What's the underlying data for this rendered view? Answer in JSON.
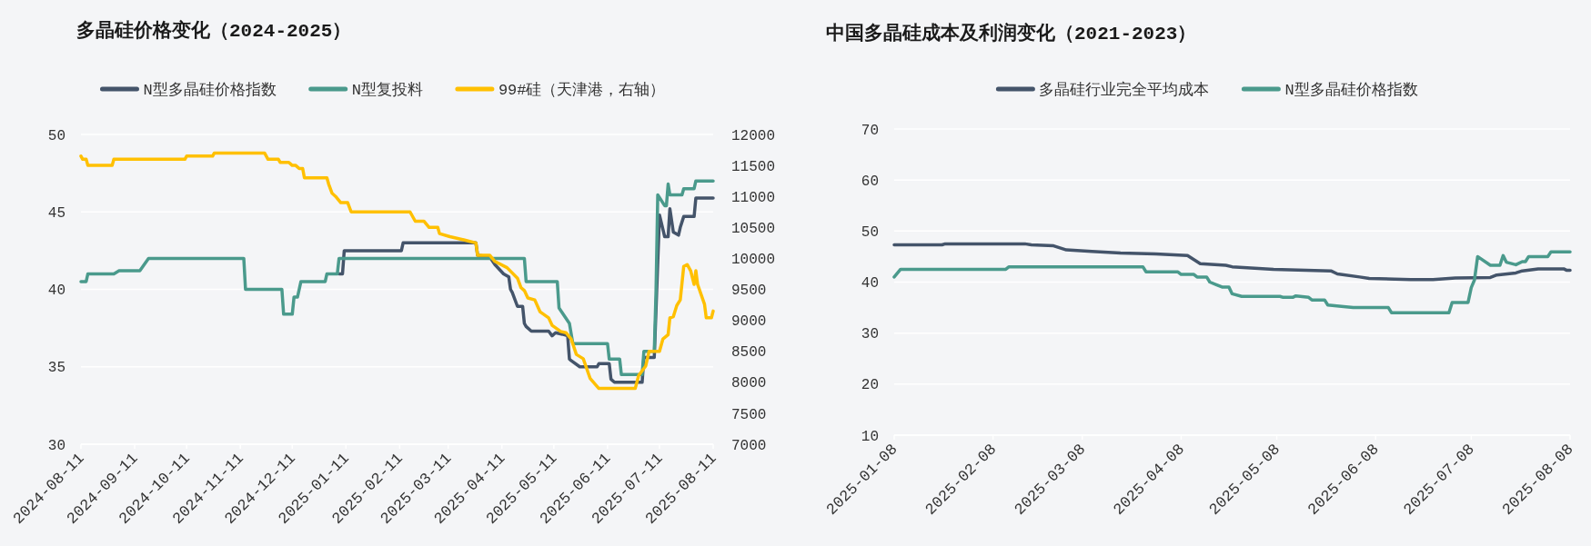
{
  "chart_data": [
    {
      "type": "line",
      "title": "多晶硅价格变化（2024-2025）",
      "xlim": [
        "2024-08-11",
        "2025-08-11"
      ],
      "xticks": [
        "2024-08-11",
        "2024-09-11",
        "2024-10-11",
        "2024-11-11",
        "2024-12-11",
        "2025-01-11",
        "2025-02-11",
        "2025-03-11",
        "2025-04-11",
        "2025-05-11",
        "2025-06-11",
        "2025-07-11",
        "2025-08-11"
      ],
      "ylim": [
        30,
        50
      ],
      "yticks": [
        30,
        35,
        40,
        45,
        50
      ],
      "y2lim": [
        7000,
        12000
      ],
      "y2ticks": [
        7000,
        7500,
        8000,
        8500,
        9000,
        9500,
        10000,
        10500,
        11000,
        11500,
        12000
      ],
      "grid": "y",
      "legend": "top",
      "series": [
        {
          "name": "N型多晶硅价格指数",
          "color": "#44546a",
          "x": [
            "2025-01-07",
            "2025-01-09",
            "2025-01-10",
            "2025-02-12",
            "2025-02-13",
            "2025-03-27",
            "2025-03-28",
            "2025-04-04",
            "2025-04-07",
            "2025-04-12",
            "2025-04-15",
            "2025-04-16",
            "2025-04-17",
            "2025-04-20",
            "2025-04-23",
            "2025-04-24",
            "2025-04-25",
            "2025-04-28",
            "2025-05-08",
            "2025-05-10",
            "2025-05-12",
            "2025-05-16",
            "2025-05-19",
            "2025-05-20",
            "2025-05-21",
            "2025-05-26",
            "2025-06-05",
            "2025-06-06",
            "2025-06-12",
            "2025-06-13",
            "2025-06-15",
            "2025-07-01",
            "2025-07-02",
            "2025-07-08",
            "2025-07-11",
            "2025-07-14",
            "2025-07-16",
            "2025-07-17",
            "2025-07-19",
            "2025-07-22",
            "2025-07-23",
            "2025-07-25",
            "2025-07-31",
            "2025-08-01",
            "2025-08-11"
          ],
          "values": [
            41,
            41,
            42.5,
            42.5,
            43,
            43,
            42.2,
            42.1,
            41.6,
            41,
            40.8,
            40,
            39.8,
            38.9,
            38.9,
            37.8,
            37.6,
            37.3,
            37.3,
            37,
            37.2,
            37.1,
            37,
            35.5,
            35.4,
            35,
            35,
            35.2,
            35.2,
            34.2,
            34,
            34,
            35.6,
            35.6,
            44.8,
            43.4,
            43.4,
            45.2,
            43.7,
            43.5,
            44,
            44.7,
            44.7,
            45.9,
            45.9
          ]
        },
        {
          "name": "N型复投料",
          "color": "#4a9a8c",
          "x": [
            "2024-08-11",
            "2024-08-14",
            "2024-08-15",
            "2024-08-30",
            "2024-09-02",
            "2024-09-14",
            "2024-09-19",
            "2024-11-13",
            "2024-11-14",
            "2024-12-05",
            "2024-12-06",
            "2024-12-11",
            "2024-12-12",
            "2024-12-14",
            "2024-12-16",
            "2024-12-30",
            "2024-12-31",
            "2025-01-06",
            "2025-01-07",
            "2025-04-24",
            "2025-04-25",
            "2025-05-13",
            "2025-05-14",
            "2025-05-17",
            "2025-05-20",
            "2025-05-22",
            "2025-06-11",
            "2025-06-12",
            "2025-06-18",
            "2025-06-19",
            "2025-07-01",
            "2025-07-02",
            "2025-07-08",
            "2025-07-09",
            "2025-07-10",
            "2025-07-14",
            "2025-07-15",
            "2025-07-16",
            "2025-07-17",
            "2025-07-24",
            "2025-07-25",
            "2025-07-31",
            "2025-08-01",
            "2025-08-11"
          ],
          "values": [
            40.5,
            40.5,
            41,
            41,
            41.2,
            41.2,
            42,
            42,
            40,
            40,
            38.4,
            38.4,
            39.5,
            39.5,
            40.5,
            40.5,
            41,
            41,
            42,
            42,
            40.5,
            40.5,
            38.8,
            38.3,
            37.8,
            36.5,
            36.5,
            35.5,
            35.5,
            34.5,
            34.5,
            36,
            36,
            39.9,
            46.1,
            45.4,
            45.4,
            46.8,
            46.1,
            46.1,
            46.5,
            46.5,
            47,
            47
          ]
        },
        {
          "name": "99#硅（天津港，右轴）",
          "color": "#ffc000",
          "axis": "y2",
          "x": [
            "2024-08-11",
            "2024-08-12",
            "2024-08-14",
            "2024-08-15",
            "2024-08-29",
            "2024-08-30",
            "2024-10-10",
            "2024-10-11",
            "2024-10-26",
            "2024-10-27",
            "2024-11-25",
            "2024-11-27",
            "2024-12-03",
            "2024-12-04",
            "2024-12-09",
            "2024-12-11",
            "2024-12-13",
            "2024-12-15",
            "2024-12-17",
            "2024-12-18",
            "2024-12-31",
            "2025-01-01",
            "2025-01-03",
            "2025-01-05",
            "2025-01-08",
            "2025-01-12",
            "2025-01-14",
            "2025-02-17",
            "2025-02-20",
            "2025-02-25",
            "2025-02-28",
            "2025-03-05",
            "2025-03-06",
            "2025-03-12",
            "2025-03-20",
            "2025-03-27",
            "2025-03-28",
            "2025-04-04",
            "2025-04-07",
            "2025-04-14",
            "2025-04-20",
            "2025-04-22",
            "2025-04-24",
            "2025-04-26",
            "2025-04-30",
            "2025-05-03",
            "2025-05-08",
            "2025-05-10",
            "2025-05-15",
            "2025-05-18",
            "2025-05-21",
            "2025-05-24",
            "2025-05-28",
            "2025-06-01",
            "2025-06-06",
            "2025-06-27",
            "2025-06-29",
            "2025-07-03",
            "2025-07-05",
            "2025-07-11",
            "2025-07-13",
            "2025-07-16",
            "2025-07-17",
            "2025-07-19",
            "2025-07-21",
            "2025-07-23",
            "2025-07-25",
            "2025-07-27",
            "2025-07-29",
            "2025-07-31",
            "2025-08-01",
            "2025-08-02",
            "2025-08-06",
            "2025-08-07",
            "2025-08-10",
            "2025-08-11"
          ],
          "values": [
            11650,
            11600,
            11600,
            11500,
            11500,
            11600,
            11600,
            11650,
            11650,
            11700,
            11700,
            11600,
            11600,
            11550,
            11550,
            11500,
            11500,
            11450,
            11450,
            11300,
            11300,
            11200,
            11050,
            11000,
            10900,
            10900,
            10750,
            10750,
            10600,
            10600,
            10500,
            10500,
            10400,
            10350,
            10300,
            10250,
            10050,
            10050,
            9950,
            9850,
            9680,
            9530,
            9480,
            9360,
            9330,
            9140,
            9040,
            8920,
            8820,
            8800,
            8700,
            8450,
            8380,
            8060,
            7900,
            7900,
            8110,
            8260,
            8500,
            8500,
            8700,
            8770,
            9040,
            9060,
            9240,
            9330,
            9870,
            9900,
            9800,
            9580,
            9800,
            9580,
            9260,
            9040,
            9040,
            9150
          ]
        }
      ]
    },
    {
      "type": "line",
      "title": "中国多晶硅成本及利润变化（2021-2023）",
      "xlim": [
        "2025-01-08",
        "2025-08-08"
      ],
      "xticks": [
        "2025-01-08",
        "2025-02-08",
        "2025-03-08",
        "2025-04-08",
        "2025-05-08",
        "2025-06-08",
        "2025-07-08",
        "2025-08-08"
      ],
      "ylim": [
        10,
        70
      ],
      "yticks": [
        10,
        20,
        30,
        40,
        50,
        60,
        70
      ],
      "grid": "y",
      "legend": "top",
      "series": [
        {
          "name": "多晶硅行业完全平均成本",
          "color": "#44546a",
          "x": [
            "2025-01-08",
            "2025-01-23",
            "2025-01-24",
            "2025-02-18",
            "2025-02-20",
            "2025-02-27",
            "2025-03-03",
            "2025-03-11",
            "2025-03-20",
            "2025-03-31",
            "2025-04-10",
            "2025-04-14",
            "2025-04-22",
            "2025-04-24",
            "2025-05-07",
            "2025-05-25",
            "2025-05-27",
            "2025-06-03",
            "2025-06-06",
            "2025-06-19",
            "2025-06-26",
            "2025-07-03",
            "2025-07-14",
            "2025-07-16",
            "2025-07-22",
            "2025-07-24",
            "2025-07-29",
            "2025-08-06",
            "2025-08-07",
            "2025-08-08"
          ],
          "values": [
            47.3,
            47.3,
            47.5,
            47.5,
            47.3,
            47.1,
            46.3,
            46,
            45.7,
            45.5,
            45.2,
            43.6,
            43.3,
            43,
            42.5,
            42.2,
            41.6,
            41,
            40.7,
            40.5,
            40.5,
            40.8,
            40.9,
            41.4,
            41.8,
            42.2,
            42.6,
            42.6,
            42.3,
            42.3
          ]
        },
        {
          "name": "N型多晶硅价格指数",
          "color": "#4a9a8c",
          "x": [
            "2025-01-08",
            "2025-01-10",
            "2025-02-12",
            "2025-02-13",
            "2025-03-27",
            "2025-03-28",
            "2025-04-07",
            "2025-04-08",
            "2025-04-12",
            "2025-04-13",
            "2025-04-16",
            "2025-04-17",
            "2025-04-19",
            "2025-04-21",
            "2025-04-23",
            "2025-04-24",
            "2025-04-27",
            "2025-05-09",
            "2025-05-10",
            "2025-05-13",
            "2025-05-14",
            "2025-05-18",
            "2025-05-19",
            "2025-05-23",
            "2025-05-24",
            "2025-05-29",
            "2025-06-01",
            "2025-06-12",
            "2025-06-13",
            "2025-07-01",
            "2025-07-02",
            "2025-07-07",
            "2025-07-08",
            "2025-07-09",
            "2025-07-10",
            "2025-07-14",
            "2025-07-17",
            "2025-07-18",
            "2025-07-19",
            "2025-07-22",
            "2025-07-24",
            "2025-07-25",
            "2025-07-26",
            "2025-08-01",
            "2025-08-02",
            "2025-08-08"
          ],
          "values": [
            41,
            42.5,
            42.5,
            43,
            43,
            42,
            42,
            41.5,
            41.5,
            41,
            41,
            40,
            39.5,
            39,
            39,
            37.7,
            37.2,
            37.2,
            37,
            37,
            37.3,
            37,
            36.5,
            36.5,
            35.5,
            35.2,
            35,
            35,
            34,
            34,
            36,
            36,
            38.9,
            40.4,
            45,
            43.3,
            43.3,
            45.2,
            43.9,
            43.4,
            44,
            44,
            45,
            45,
            45.9,
            45.9
          ]
        }
      ]
    }
  ]
}
